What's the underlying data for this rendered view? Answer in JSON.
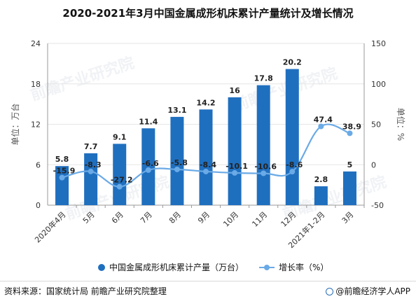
{
  "title": "2020-2021年3月中国金属成形机床累计产量统计及增长情况",
  "source": "资料来源：国家统计局 前瞻产业研究院整理",
  "brand": "@前瞻经济学人APP",
  "watermark": "前瞻产业研究院",
  "colors": {
    "bar": "#1f6fbf",
    "line": "#6aaae6",
    "grid": "#e6e6e6",
    "axis": "#999999"
  },
  "chart_data": {
    "type": "bar",
    "title": "2020-2021年3月中国金属成形机床累计产量统计及增长情况",
    "categories": [
      "2020年4月",
      "5月",
      "6月",
      "7月",
      "8月",
      "9月",
      "10月",
      "11月",
      "12月",
      "2021年1-2月",
      "3月"
    ],
    "series": [
      {
        "name": "中国金属成形机床累计产量（万台）",
        "type": "bar",
        "axis": "left",
        "values": [
          5.8,
          7.7,
          9.1,
          11.4,
          13.1,
          14.2,
          16,
          17.8,
          20.2,
          2.8,
          5
        ],
        "labels": [
          "5.8",
          "7.7",
          "9.1",
          "11.4",
          "13.1",
          "14.2",
          "16",
          "17.8",
          "20.2",
          "2.8",
          "5"
        ]
      },
      {
        "name": "增长率（%）",
        "type": "line",
        "axis": "right",
        "values": [
          -15.9,
          -8.3,
          -27.2,
          -6.6,
          -5.8,
          -8.4,
          -10.1,
          -10.6,
          -8.6,
          47.4,
          38.9
        ],
        "labels": [
          "-15.9",
          "-8.3",
          "-27.2",
          "-6.6",
          "-5.8",
          "-8.4",
          "-10.1",
          "-10.6",
          "-8.6",
          "47.4",
          "38.9"
        ]
      }
    ],
    "y_left": {
      "label": "单位：万台",
      "min": 0,
      "max": 24,
      "ticks": [
        "0",
        "6",
        "12",
        "18",
        "24"
      ],
      "tick_values": [
        0,
        6,
        12,
        18,
        24
      ]
    },
    "y_right": {
      "label": "单位：%",
      "min": -50,
      "max": 150,
      "ticks": [
        "-50",
        "0",
        "50",
        "100",
        "150"
      ],
      "tick_values": [
        -50,
        0,
        50,
        100,
        150
      ]
    },
    "grid": true,
    "legend_position": "bottom"
  }
}
